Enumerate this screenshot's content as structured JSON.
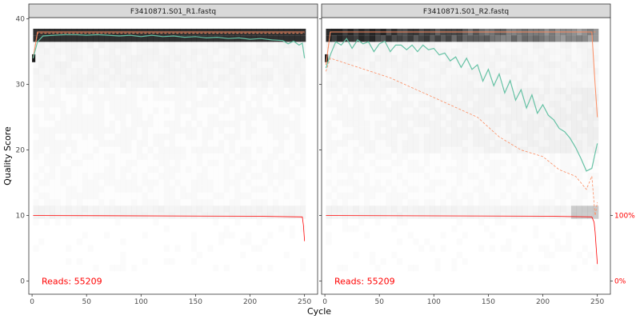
{
  "chart_data": {
    "type": "heatmap",
    "description": "dada2 read quality profile (quality score heatmap per cycle with mean / quartile lines and read-fraction line)",
    "xlabel": "Cycle",
    "ylabel": "Quality Score",
    "xlim": [
      0,
      251
    ],
    "ylim": [
      0,
      40
    ],
    "x_ticks": [
      0,
      50,
      100,
      150,
      200,
      250
    ],
    "y_ticks": [
      0,
      10,
      20,
      30,
      40
    ],
    "right_axis_labels": [
      "100%",
      "0%"
    ],
    "colors": {
      "mean": "#66C2A5",
      "quartile": "#FC8D62",
      "cumulative": "#FF0000",
      "reads_label": "#FF0000",
      "strip_fill": "#D9D9D9"
    },
    "panels": [
      {
        "title": "F3410871.S01_R1.fastq",
        "reads_label": "Reads:  55209",
        "mean_quality": {
          "x": [
            1,
            5,
            10,
            20,
            30,
            40,
            50,
            60,
            70,
            80,
            90,
            100,
            110,
            120,
            130,
            140,
            150,
            160,
            170,
            180,
            190,
            200,
            210,
            220,
            230,
            235,
            240,
            245,
            248,
            250
          ],
          "y": [
            34,
            36.5,
            37.4,
            37.5,
            37.6,
            37.6,
            37.5,
            37.6,
            37.5,
            37.4,
            37.5,
            37.3,
            37.5,
            37.3,
            37.4,
            37.2,
            37.3,
            37.1,
            37.2,
            37.0,
            37.1,
            36.9,
            37.0,
            36.8,
            36.7,
            36.2,
            36.6,
            36.0,
            36.3,
            34.0
          ]
        },
        "median_quality": {
          "x": [
            1,
            5,
            250
          ],
          "y": [
            34,
            38,
            38
          ]
        },
        "quartile_25": {
          "x": [
            1,
            5,
            250
          ],
          "y": [
            34,
            37.8,
            37.8
          ]
        },
        "quartile_75": {
          "x": [
            1,
            5,
            250
          ],
          "y": [
            34,
            38,
            38
          ]
        },
        "cumulative_reads": {
          "x": [
            1,
            10,
            200,
            248,
            249,
            250
          ],
          "y": [
            10,
            10,
            9.9,
            9.8,
            8.5,
            6.1
          ]
        }
      },
      {
        "title": "F3410871.S01_R2.fastq",
        "reads_label": "Reads:  55209",
        "mean_quality": {
          "x": [
            1,
            5,
            10,
            15,
            20,
            25,
            30,
            35,
            40,
            45,
            50,
            55,
            60,
            65,
            70,
            75,
            80,
            85,
            90,
            95,
            100,
            105,
            110,
            115,
            120,
            125,
            130,
            135,
            140,
            145,
            150,
            155,
            160,
            165,
            170,
            175,
            180,
            185,
            190,
            195,
            200,
            205,
            210,
            215,
            220,
            225,
            230,
            235,
            240,
            245,
            248,
            250
          ],
          "y": [
            32.5,
            34.5,
            36.5,
            36.0,
            37.0,
            35.5,
            36.8,
            36.2,
            36.5,
            35.0,
            36.2,
            36.6,
            35.0,
            36.0,
            36.0,
            35.3,
            36.0,
            35.0,
            36.0,
            35.3,
            35.5,
            34.5,
            34.8,
            33.6,
            34.2,
            32.6,
            34.0,
            32.3,
            33.0,
            30.5,
            32.3,
            29.8,
            31.6,
            28.7,
            30.6,
            27.6,
            29.2,
            26.4,
            28.4,
            25.6,
            26.9,
            25.3,
            24.6,
            23.3,
            22.8,
            21.8,
            20.4,
            18.7,
            16.8,
            17.2,
            19.5,
            21.0
          ]
        },
        "median_quality": {
          "x": [
            1,
            5,
            245,
            248,
            250
          ],
          "y": [
            33,
            38,
            38,
            30,
            25
          ]
        },
        "quartile_25": {
          "x": [
            1,
            5,
            60,
            100,
            140,
            160,
            180,
            200,
            215,
            230,
            240,
            245,
            248,
            250
          ],
          "y": [
            32,
            34,
            31,
            28,
            25,
            22,
            20,
            19,
            17,
            16,
            14,
            16,
            10,
            12
          ]
        },
        "quartile_75": {
          "x": [
            1,
            5,
            250
          ],
          "y": [
            33,
            38,
            38
          ]
        },
        "cumulative_reads": {
          "x": [
            1,
            10,
            200,
            245,
            247,
            248,
            249,
            250
          ],
          "y": [
            10,
            10,
            9.9,
            9.8,
            9.0,
            7.5,
            5.0,
            2.6
          ]
        }
      }
    ]
  }
}
